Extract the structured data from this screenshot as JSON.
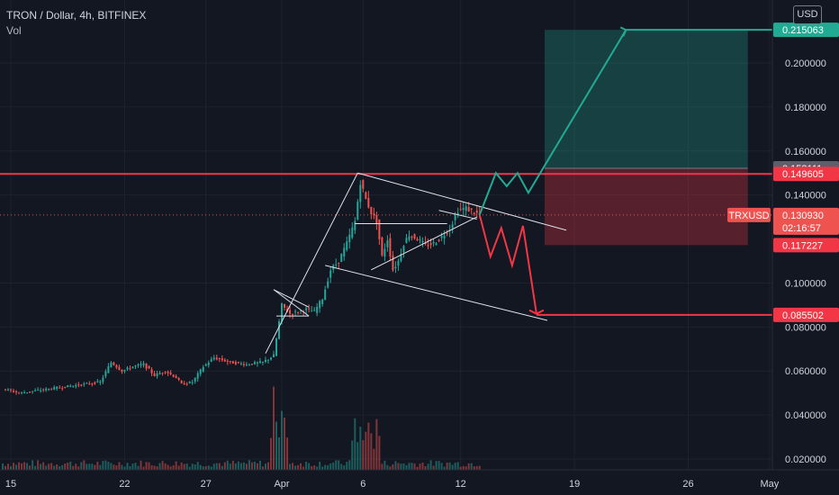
{
  "header": {
    "symbol_line": "TRON / Dollar, 4h, BITFINEX",
    "volume_label": "Vol",
    "currency_button": "USD"
  },
  "colors": {
    "background": "#131722",
    "up": "#26a69a",
    "down": "#ef5350",
    "resistance": "#f23645",
    "target_up": "#22ab94",
    "pattern_lines": "#e0e3eb"
  },
  "price_scale": {
    "ticks": [
      "0.200000",
      "0.180000",
      "0.160000",
      "0.140000",
      "0.100000",
      "0.080000",
      "0.060000",
      "0.040000",
      "0.020000"
    ],
    "labels": [
      {
        "text": "0.215063",
        "price": 0.215063,
        "color": "#22ab94"
      },
      {
        "text": "0.152111",
        "price": 0.152111,
        "color": "#5d606b"
      },
      {
        "text": "0.149605",
        "price": 0.149605,
        "color": "#f23645"
      },
      {
        "text": "0.117227",
        "price": 0.117227,
        "color": "#f23645"
      },
      {
        "text": "0.085502",
        "price": 0.085502,
        "color": "#f23645"
      }
    ],
    "current": {
      "symbol": "TRXUSD",
      "price_text": "0.130930",
      "price": 0.13093,
      "countdown": "02:16:57"
    }
  },
  "time_scale": {
    "ticks": [
      {
        "label": "15",
        "bar": 3
      },
      {
        "label": "22",
        "bar": 45
      },
      {
        "label": "27",
        "bar": 75
      },
      {
        "label": "Apr",
        "bar": 103
      },
      {
        "label": "6",
        "bar": 133
      },
      {
        "label": "12",
        "bar": 169
      },
      {
        "label": "19",
        "bar": 211
      },
      {
        "label": "26",
        "bar": 253
      },
      {
        "label": "May",
        "bar": 283
      }
    ]
  },
  "chart_data": {
    "type": "candlestick",
    "title": "TRON / Dollar, 4h, BITFINEX",
    "ylim": [
      0.014,
      0.229
    ],
    "xlim": [
      0,
      310
    ],
    "resistance_level": 0.149605,
    "target_up": 0.215063,
    "target_down": 0.085502,
    "stop_level": 0.117227,
    "entry_level": 0.152111,
    "last_price": 0.13093,
    "close_anchors": [
      [
        0,
        0.052
      ],
      [
        6,
        0.05
      ],
      [
        12,
        0.051
      ],
      [
        18,
        0.052
      ],
      [
        24,
        0.053
      ],
      [
        30,
        0.054
      ],
      [
        36,
        0.055
      ],
      [
        40,
        0.064
      ],
      [
        44,
        0.06
      ],
      [
        48,
        0.062
      ],
      [
        52,
        0.063
      ],
      [
        56,
        0.058
      ],
      [
        60,
        0.06
      ],
      [
        64,
        0.057
      ],
      [
        66,
        0.054
      ],
      [
        70,
        0.055
      ],
      [
        74,
        0.062
      ],
      [
        78,
        0.066
      ],
      [
        84,
        0.064
      ],
      [
        90,
        0.063
      ],
      [
        96,
        0.064
      ],
      [
        100,
        0.067
      ],
      [
        103,
        0.09
      ],
      [
        106,
        0.086
      ],
      [
        109,
        0.087
      ],
      [
        112,
        0.088
      ],
      [
        115,
        0.087
      ],
      [
        118,
        0.093
      ],
      [
        121,
        0.106
      ],
      [
        124,
        0.11
      ],
      [
        127,
        0.118
      ],
      [
        130,
        0.128
      ],
      [
        132,
        0.146
      ],
      [
        134,
        0.138
      ],
      [
        136,
        0.132
      ],
      [
        138,
        0.128
      ],
      [
        140,
        0.112
      ],
      [
        142,
        0.12
      ],
      [
        144,
        0.106
      ],
      [
        146,
        0.11
      ],
      [
        148,
        0.118
      ],
      [
        150,
        0.122
      ],
      [
        153,
        0.12
      ],
      [
        156,
        0.117
      ],
      [
        159,
        0.118
      ],
      [
        162,
        0.121
      ],
      [
        165,
        0.125
      ],
      [
        168,
        0.133
      ],
      [
        171,
        0.134
      ],
      [
        174,
        0.132
      ],
      [
        176,
        0.131
      ]
    ],
    "annotations": {
      "projection_down": [
        [
          176,
          0.131
        ],
        [
          180,
          0.112
        ],
        [
          184,
          0.125
        ],
        [
          188,
          0.108
        ],
        [
          192,
          0.126
        ],
        [
          197,
          0.086
        ]
      ],
      "projection_up": [
        [
          176,
          0.131
        ],
        [
          182,
          0.15
        ],
        [
          186,
          0.144
        ],
        [
          190,
          0.15
        ],
        [
          194,
          0.141
        ],
        [
          230,
          0.215
        ]
      ]
    }
  }
}
